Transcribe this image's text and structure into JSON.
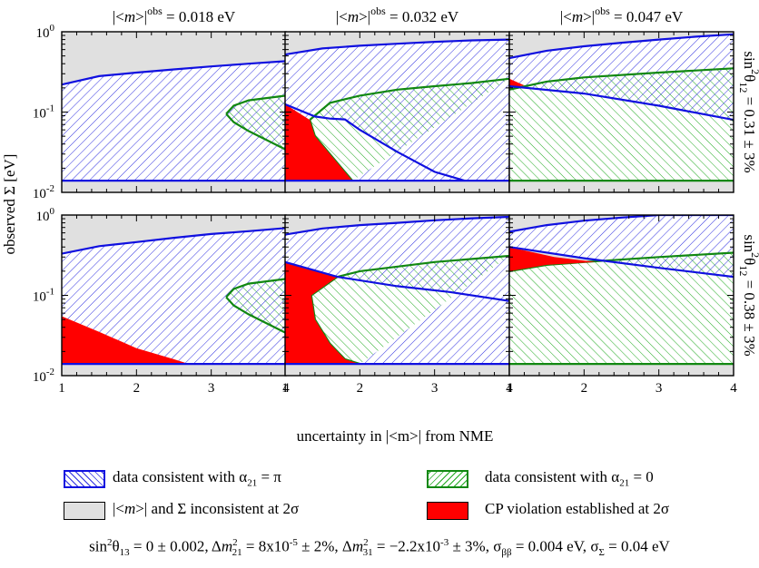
{
  "chart_data": {
    "type": "area",
    "layout": "2x3 panel grid",
    "column_titles": [
      "|<m>|obs = 0.018 eV",
      "|<m>|obs = 0.032 eV",
      "|<m>|obs = 0.047 eV"
    ],
    "column_title_parts": [
      {
        "pre": "|<",
        "m": "m",
        "post": ">|",
        "sup": "obs",
        "val": " = 0.018 eV"
      },
      {
        "pre": "|<",
        "m": "m",
        "post": ">|",
        "sup": "obs",
        "val": " = 0.032 eV"
      },
      {
        "pre": "|<",
        "m": "m",
        "post": ">|",
        "sup": "obs",
        "val": " = 0.047 eV"
      }
    ],
    "row_labels": [
      "sin²θ12 = 0.31 ± 3%",
      "sin²θ12 = 0.38 ± 3%"
    ],
    "row_label_parts": [
      {
        "pre": "sin",
        "sup": "2",
        "theta": "θ",
        "sub": "12",
        "val": " = 0.31 ± 3%"
      },
      {
        "pre": "sin",
        "sup": "2",
        "theta": "θ",
        "sub": "12",
        "val": " = 0.38 ± 3%"
      }
    ],
    "xlabel": "uncertainty in |<m>| from NME",
    "ylabel": "observed Σ [eV]",
    "xlim": [
      1,
      4
    ],
    "ylim": [
      0.01,
      1
    ],
    "yscale": "log",
    "xticks": [
      1,
      2,
      3,
      4
    ],
    "xtick_labels": [
      "1",
      "2",
      "3",
      "4"
    ],
    "yticks": [
      0.01,
      0.1,
      1
    ],
    "ytick_labels": [
      {
        "base": "10",
        "exp": "-2"
      },
      {
        "base": "10",
        "exp": "-1"
      },
      {
        "base": "10",
        "exp": "0"
      }
    ],
    "colors": {
      "inconsistent": "#e0e0e0",
      "pi_line": "#1010e0",
      "pi_hatch": "#3030e0",
      "zero_line": "#118811",
      "zero_hatch": "#22aa22",
      "cp": "#ff0000"
    },
    "panels": [
      {
        "row": 0,
        "col": 0,
        "inconsistent_boundary": [
          [
            1,
            0.22
          ],
          [
            1.5,
            0.28
          ],
          [
            2,
            0.31
          ],
          [
            2.5,
            0.34
          ],
          [
            3,
            0.37
          ],
          [
            3.5,
            0.4
          ],
          [
            4,
            0.43
          ]
        ],
        "pi_lower": 0.014,
        "zero_region": {
          "tip": [
            3.2,
            0.095
          ],
          "upper": [
            [
              3.2,
              0.095
            ],
            [
              3.3,
              0.12
            ],
            [
              3.5,
              0.14
            ],
            [
              4,
              0.16
            ]
          ],
          "lower": [
            [
              3.2,
              0.095
            ],
            [
              3.3,
              0.075
            ],
            [
              3.5,
              0.058
            ],
            [
              4,
              0.034
            ]
          ]
        },
        "cp_region": []
      },
      {
        "row": 0,
        "col": 1,
        "inconsistent_boundary": [
          [
            1,
            0.52
          ],
          [
            1.5,
            0.62
          ],
          [
            2,
            0.67
          ],
          [
            2.5,
            0.71
          ],
          [
            3,
            0.75
          ],
          [
            3.5,
            0.78
          ],
          [
            4,
            0.8
          ]
        ],
        "pi_lower": 0.014,
        "pi_inner_line": [
          [
            1,
            0.125
          ],
          [
            1.4,
            0.088
          ],
          [
            1.6,
            0.083
          ],
          [
            1.8,
            0.081
          ],
          [
            2,
            0.06
          ],
          [
            2.5,
            0.032
          ],
          [
            3,
            0.018
          ],
          [
            3.4,
            0.014
          ]
        ],
        "zero_region": {
          "tip": [
            1.33,
            0.08
          ],
          "upper": [
            [
              1.33,
              0.08
            ],
            [
              1.6,
              0.13
            ],
            [
              2,
              0.16
            ],
            [
              2.5,
              0.19
            ],
            [
              3,
              0.21
            ],
            [
              3.5,
              0.23
            ],
            [
              4,
              0.26
            ]
          ],
          "lower": [
            [
              1.33,
              0.08
            ],
            [
              1.4,
              0.05
            ],
            [
              1.6,
              0.03
            ],
            [
              1.8,
              0.018
            ],
            [
              1.9,
              0.014
            ]
          ]
        },
        "cp_region": [
          [
            1,
            0.125
          ],
          [
            1.33,
            0.08
          ],
          [
            1.4,
            0.05
          ],
          [
            1.6,
            0.03
          ],
          [
            1.8,
            0.018
          ],
          [
            1.9,
            0.014
          ],
          [
            1,
            0.014
          ]
        ]
      },
      {
        "row": 0,
        "col": 2,
        "inconsistent_boundary": [
          [
            1,
            0.47
          ],
          [
            1.5,
            0.58
          ],
          [
            2,
            0.66
          ],
          [
            2.5,
            0.73
          ],
          [
            3,
            0.8
          ],
          [
            3.5,
            0.87
          ],
          [
            4,
            0.93
          ]
        ],
        "pi_lower_curve": [
          [
            1,
            0.21
          ],
          [
            2,
            0.17
          ],
          [
            3,
            0.12
          ],
          [
            4,
            0.08
          ]
        ],
        "zero_region": {
          "tip": [
            1,
            0.24
          ],
          "upper": [
            [
              1,
              0.19
            ],
            [
              1.5,
              0.24
            ],
            [
              2,
              0.27
            ],
            [
              3,
              0.31
            ],
            [
              4,
              0.35
            ]
          ],
          "lower": [
            [
              1,
              0.014
            ],
            [
              4,
              0.014
            ]
          ]
        },
        "cp_region": [
          [
            1,
            0.26
          ],
          [
            1.2,
            0.215
          ],
          [
            1,
            0.2
          ]
        ]
      },
      {
        "row": 1,
        "col": 0,
        "inconsistent_boundary": [
          [
            1,
            0.33
          ],
          [
            1.5,
            0.41
          ],
          [
            2,
            0.46
          ],
          [
            2.5,
            0.52
          ],
          [
            3,
            0.58
          ],
          [
            3.5,
            0.63
          ],
          [
            4,
            0.69
          ]
        ],
        "pi_lower": 0.014,
        "zero_region": {
          "tip": [
            3.2,
            0.095
          ],
          "upper": [
            [
              3.2,
              0.095
            ],
            [
              3.3,
              0.12
            ],
            [
              3.5,
              0.14
            ],
            [
              4,
              0.16
            ]
          ],
          "lower": [
            [
              3.2,
              0.095
            ],
            [
              3.3,
              0.075
            ],
            [
              3.5,
              0.058
            ],
            [
              4,
              0.034
            ]
          ]
        },
        "cp_region": [
          [
            1,
            0.055
          ],
          [
            1.5,
            0.035
          ],
          [
            2,
            0.022
          ],
          [
            2.5,
            0.016
          ],
          [
            2.7,
            0.014
          ],
          [
            1,
            0.014
          ]
        ]
      },
      {
        "row": 1,
        "col": 1,
        "inconsistent_boundary": [
          [
            1,
            0.57
          ],
          [
            1.5,
            0.68
          ],
          [
            2,
            0.75
          ],
          [
            2.5,
            0.8
          ],
          [
            3,
            0.86
          ],
          [
            3.5,
            0.91
          ],
          [
            4,
            0.95
          ]
        ],
        "pi_lower": 0.014,
        "pi_inner_line": [
          [
            1,
            0.26
          ],
          [
            1.7,
            0.17
          ],
          [
            2.5,
            0.13
          ],
          [
            3.2,
            0.11
          ],
          [
            4,
            0.085
          ]
        ],
        "zero_region": {
          "tip": [
            1.35,
            0.1
          ],
          "upper": [
            [
              1.35,
              0.1
            ],
            [
              1.7,
              0.17
            ],
            [
              2,
              0.2
            ],
            [
              3,
              0.26
            ],
            [
              4,
              0.31
            ]
          ],
          "lower": [
            [
              1.35,
              0.1
            ],
            [
              1.4,
              0.05
            ],
            [
              1.6,
              0.025
            ],
            [
              1.8,
              0.016
            ],
            [
              2,
              0.014
            ]
          ]
        },
        "cp_region": [
          [
            1,
            0.26
          ],
          [
            1.7,
            0.17
          ],
          [
            1.35,
            0.1
          ],
          [
            1.4,
            0.05
          ],
          [
            1.6,
            0.025
          ],
          [
            1.8,
            0.016
          ],
          [
            2,
            0.014
          ],
          [
            1,
            0.014
          ]
        ]
      },
      {
        "row": 1,
        "col": 2,
        "inconsistent_boundary": [
          [
            1,
            0.62
          ],
          [
            1.5,
            0.75
          ],
          [
            2,
            0.85
          ],
          [
            2.5,
            0.93
          ],
          [
            3,
            1.0
          ],
          [
            4,
            1.0
          ]
        ],
        "pi_lower_curve": [
          [
            1,
            0.4
          ],
          [
            2,
            0.29
          ],
          [
            3,
            0.22
          ],
          [
            4,
            0.17
          ]
        ],
        "zero_region": {
          "tip": [
            1,
            0.2
          ],
          "upper": [
            [
              1,
              0.2
            ],
            [
              1.5,
              0.24
            ],
            [
              2,
              0.26
            ],
            [
              3,
              0.3
            ],
            [
              4,
              0.34
            ]
          ],
          "lower": [
            [
              1,
              0.014
            ],
            [
              4,
              0.014
            ]
          ]
        },
        "cp_region": [
          [
            1,
            0.4
          ],
          [
            1.6,
            0.3
          ],
          [
            2.15,
            0.26
          ],
          [
            1.5,
            0.24
          ],
          [
            1,
            0.2
          ]
        ]
      }
    ]
  },
  "legend": {
    "pi": {
      "label_pre": "data consistent with ",
      "alpha": "α",
      "alpha_sub": "21",
      "label_post": " = π"
    },
    "zero": {
      "label_pre": "data consistent with ",
      "alpha": "α",
      "alpha_sub": "21",
      "label_post": " = 0"
    },
    "inconsistent": {
      "label_pre": "|<",
      "m": "m",
      "label_mid": ">| and Σ inconsistent at 2σ"
    },
    "cp": {
      "label": "CP violation established at 2σ"
    }
  },
  "footer": {
    "text": "sin²θ13 = 0 ± 0.002,  Δm²21 = 8x10-5 ± 2%,  Δm²31 = −2.2x10-3 ± 3%,  σββ = 0.004 eV, σΣ = 0.04 eV",
    "parts": {
      "s13_pre": "sin",
      "s13_sup": "2",
      "s13_theta": "θ",
      "s13_sub": "13",
      "s13_val": " = 0 ± 0.002,  ",
      "dm21_pre": "Δ",
      "dm21_m": "m",
      "dm21_sup": "2",
      "dm21_sub": "21",
      "dm21_val": " = 8x10",
      "dm21_exp": "-5",
      "dm21_tail": " ± 2%,  ",
      "dm31_pre": "Δ",
      "dm31_m": "m",
      "dm31_sup": "2",
      "dm31_sub": "31",
      "dm31_val": " = −2.2x10",
      "dm31_exp": "-3",
      "dm31_tail": " ± 3%,   ",
      "sbb": "σ",
      "sbb_sub": "ββ",
      "sbb_val": " = 0.004 eV, ",
      "ss": "σ",
      "ss_sub": "Σ",
      "ss_val": " = 0.04 eV"
    }
  }
}
